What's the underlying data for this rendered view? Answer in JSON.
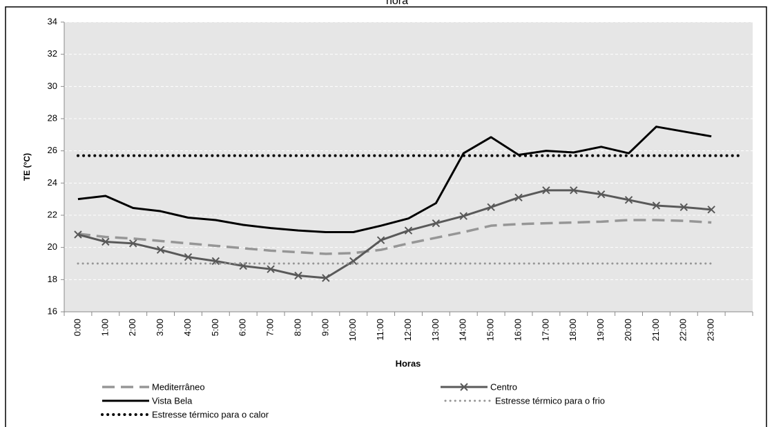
{
  "chart_data": {
    "type": "line",
    "title": "hora",
    "x_label": "Horas",
    "y_label": "TE (°C)",
    "categories": [
      "0:00",
      "1:00",
      "2:00",
      "3:00",
      "4:00",
      "5:00",
      "6:00",
      "7:00",
      "8:00",
      "9:00",
      "10:00",
      "11:00",
      "12:00",
      "13:00",
      "14:00",
      "15:00",
      "16:00",
      "17:00",
      "18:00",
      "19:00",
      "20:00",
      "21:00",
      "22:00",
      "23:00",
      null
    ],
    "ylim": [
      16,
      34
    ],
    "yticks": [
      16,
      18,
      20,
      22,
      24,
      26,
      28,
      30,
      32,
      34
    ],
    "grid": true,
    "series": [
      {
        "name": "Mediterrâneo",
        "color": "#969696",
        "style": "dashed",
        "values": [
          20.85,
          20.65,
          20.55,
          20.4,
          20.25,
          20.1,
          19.95,
          19.8,
          19.7,
          19.6,
          19.65,
          19.85,
          20.25,
          20.6,
          20.95,
          21.35,
          21.45,
          21.5,
          21.55,
          21.6,
          21.7,
          21.7,
          21.65,
          21.55,
          null
        ]
      },
      {
        "name": "Centro",
        "color": "#595959",
        "style": "solid",
        "marker": "x",
        "values": [
          20.8,
          20.35,
          20.25,
          19.85,
          19.4,
          19.15,
          18.85,
          18.65,
          18.25,
          18.1,
          19.15,
          20.45,
          21.05,
          21.5,
          21.95,
          22.5,
          23.1,
          23.55,
          23.55,
          23.3,
          22.95,
          22.6,
          22.5,
          22.35,
          null
        ]
      },
      {
        "name": "Vista Bela",
        "color": "#000000",
        "style": "solid",
        "values": [
          23.0,
          23.2,
          22.45,
          22.25,
          21.85,
          21.7,
          21.4,
          21.2,
          21.05,
          20.95,
          20.95,
          21.35,
          21.8,
          22.75,
          25.85,
          26.85,
          25.75,
          26.0,
          25.9,
          26.25,
          25.85,
          27.5,
          27.2,
          26.9,
          null
        ]
      },
      {
        "name": "Estresse térmico para o frio",
        "color": "#969696",
        "style": "dotted",
        "values": [
          19,
          19,
          19,
          19,
          19,
          19,
          19,
          19,
          19,
          19,
          19,
          19,
          19,
          19,
          19,
          19,
          19,
          19,
          19,
          19,
          19,
          19,
          19,
          19,
          null
        ]
      },
      {
        "name": "Estresse térmico para o calor",
        "color": "#000000",
        "style": "dotted-heavy",
        "values": [
          25.7,
          25.7,
          25.7,
          25.7,
          25.7,
          25.7,
          25.7,
          25.7,
          25.7,
          25.7,
          25.7,
          25.7,
          25.7,
          25.7,
          25.7,
          25.7,
          25.7,
          25.7,
          25.7,
          25.7,
          25.7,
          25.7,
          25.7,
          25.7,
          25.7
        ]
      }
    ]
  }
}
